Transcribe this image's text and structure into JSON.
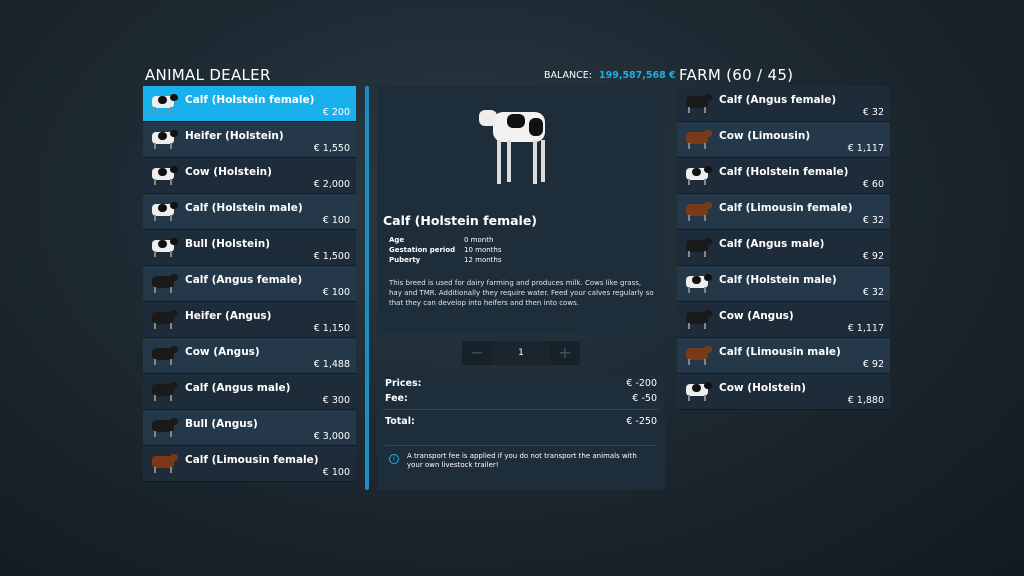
{
  "header": {
    "title": "ANIMAL DEALER",
    "balance_label": "BALANCE:",
    "balance_value": "199,587,568 €",
    "farm_title": "FARM (60 / 45)"
  },
  "colors": {
    "accent": "#19b1ec",
    "holstein": "#111111",
    "angus": "#1a1a1a",
    "limousin": "#7a3a1a"
  },
  "dealer": [
    {
      "name": "Calf (Holstein female)",
      "price": "€ 200",
      "breed": "holstein",
      "selected": true
    },
    {
      "name": "Heifer (Holstein)",
      "price": "€ 1,550",
      "breed": "holstein"
    },
    {
      "name": "Cow (Holstein)",
      "price": "€ 2,000",
      "breed": "holstein"
    },
    {
      "name": "Calf (Holstein male)",
      "price": "€ 100",
      "breed": "holstein"
    },
    {
      "name": "Bull (Holstein)",
      "price": "€ 1,500",
      "breed": "holstein"
    },
    {
      "name": "Calf (Angus female)",
      "price": "€ 100",
      "breed": "angus"
    },
    {
      "name": "Heifer (Angus)",
      "price": "€ 1,150",
      "breed": "angus"
    },
    {
      "name": "Cow (Angus)",
      "price": "€ 1,488",
      "breed": "angus"
    },
    {
      "name": "Calf (Angus male)",
      "price": "€ 300",
      "breed": "angus"
    },
    {
      "name": "Bull (Angus)",
      "price": "€ 3,000",
      "breed": "angus"
    },
    {
      "name": "Calf (Limousin female)",
      "price": "€ 100",
      "breed": "limousin"
    }
  ],
  "farm": [
    {
      "name": "Calf (Angus female)",
      "price": "€ 32",
      "breed": "angus"
    },
    {
      "name": "Cow (Limousin)",
      "price": "€ 1,117",
      "breed": "limousin"
    },
    {
      "name": "Calf (Holstein female)",
      "price": "€ 60",
      "breed": "holstein"
    },
    {
      "name": "Calf (Limousin female)",
      "price": "€ 32",
      "breed": "limousin"
    },
    {
      "name": "Calf (Angus male)",
      "price": "€ 92",
      "breed": "angus"
    },
    {
      "name": "Calf (Holstein male)",
      "price": "€ 32",
      "breed": "holstein"
    },
    {
      "name": "Cow (Angus)",
      "price": "€ 1,117",
      "breed": "angus"
    },
    {
      "name": "Calf (Limousin male)",
      "price": "€ 92",
      "breed": "limousin"
    },
    {
      "name": "Cow (Holstein)",
      "price": "€ 1,880",
      "breed": "holstein"
    }
  ],
  "detail": {
    "title": "Calf (Holstein female)",
    "attrs": [
      {
        "k": "Age",
        "v": "0 month"
      },
      {
        "k": "Gestation period",
        "v": "10 months"
      },
      {
        "k": "Puberty",
        "v": "12 months"
      }
    ],
    "description": "This breed is used for dairy farming and produces milk. Cows like grass, hay and TMR. Additionally they require water. Feed your calves regularly so that they can develop into heifers and then into cows."
  },
  "stepper": {
    "minus": "−",
    "value": "1",
    "plus": "+"
  },
  "summary": {
    "prices_label": "Prices:",
    "prices_value": "€ -200",
    "fee_label": "Fee:",
    "fee_value": "€ -50",
    "total_label": "Total:",
    "total_value": "€ -250",
    "info": "A transport fee is applied if you do not transport the animals with your own livestock trailer!"
  }
}
